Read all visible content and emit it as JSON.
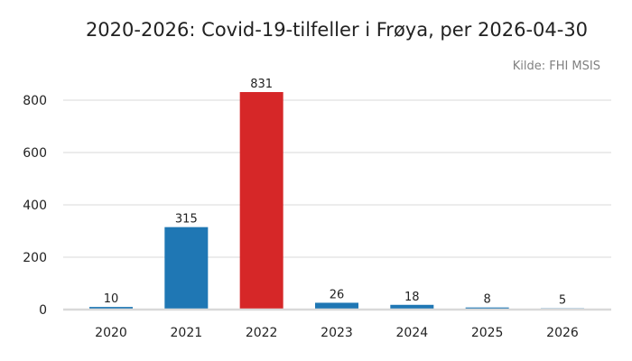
{
  "chart_data": {
    "type": "bar",
    "title": "2020-2026: Covid-19-tilfeller i Frøya, per 2026-04-30",
    "source": "Kilde: FHI MSIS",
    "xlabel": "",
    "ylabel": "",
    "categories": [
      "2020",
      "2021",
      "2022",
      "2023",
      "2024",
      "2025",
      "2026"
    ],
    "values": [
      10,
      315,
      831,
      26,
      18,
      8,
      5
    ],
    "data_labels": [
      "10",
      "315",
      "831",
      "26",
      "18",
      "8",
      "5"
    ],
    "highlight_index": 2,
    "ylim": [
      0,
      900
    ],
    "yticks": [
      0,
      200,
      400,
      600,
      800
    ],
    "ytick_labels": [
      "0",
      "200",
      "400",
      "600",
      "800"
    ],
    "grid": true,
    "legend": "none",
    "colors": {
      "bar": "#1f77b4",
      "highlight": "#d62728"
    }
  }
}
